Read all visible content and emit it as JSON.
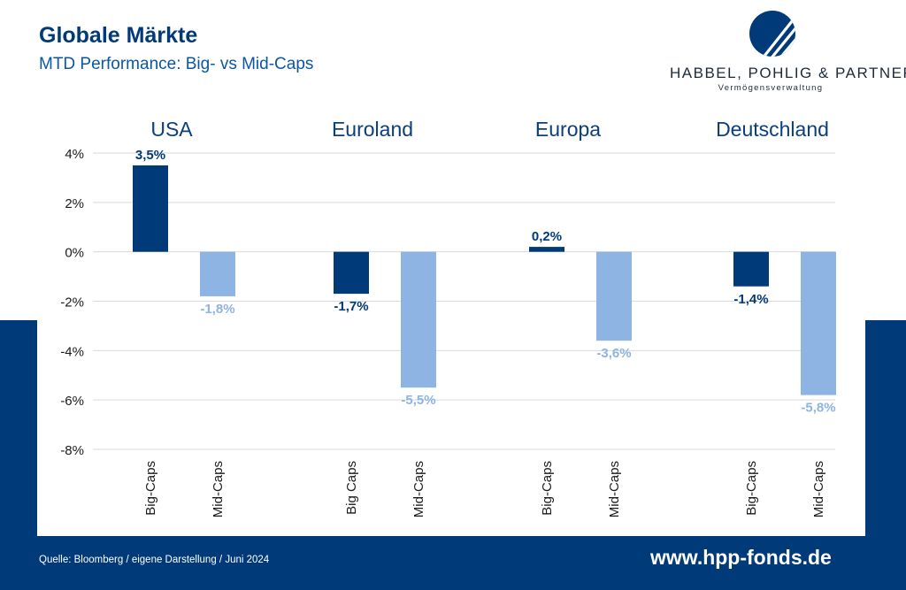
{
  "header": {
    "title": "Globale Märkte",
    "subtitle": "MTD Performance: Big- vs Mid-Caps"
  },
  "logo": {
    "name": "HABBEL, POHLIG & PARTNER",
    "tagline": "Vermögensverwaltung",
    "icon": "stripe-circle-icon"
  },
  "footer": {
    "source": "Quelle: Bloomberg / eigene Darstellung / Juni 2024",
    "website": "www.hpp-fonds.de"
  },
  "colors": {
    "big_caps": "#003a78",
    "mid_caps": "#8db4e2",
    "band": "#003a78",
    "grid": "#d9d9d9"
  },
  "chart_data": {
    "type": "bar",
    "title": "",
    "xlabel": "",
    "ylabel": "",
    "ylim": [
      -8,
      4
    ],
    "yticks": [
      4,
      2,
      0,
      -2,
      -4,
      -6,
      -8
    ],
    "ytick_labels": [
      "4%",
      "2%",
      "0%",
      "-2%",
      "-4%",
      "-6%",
      "-8%"
    ],
    "grid": true,
    "groups": [
      {
        "label": "USA",
        "bars": [
          {
            "category": "Big-Caps",
            "value": 3.5,
            "label": "3,5%",
            "series": "big"
          },
          {
            "category": "Mid-Caps",
            "value": -1.8,
            "label": "-1,8%",
            "series": "mid"
          }
        ]
      },
      {
        "label": "Euroland",
        "bars": [
          {
            "category": "Big Caps",
            "value": -1.7,
            "label": "-1,7%",
            "series": "big"
          },
          {
            "category": "Mid-Caps",
            "value": -5.5,
            "label": "-5,5%",
            "series": "mid"
          }
        ]
      },
      {
        "label": "Europa",
        "bars": [
          {
            "category": "Big-Caps",
            "value": 0.2,
            "label": "0,2%",
            "series": "big"
          },
          {
            "category": "Mid-Caps",
            "value": -3.6,
            "label": "-3,6%",
            "series": "mid"
          }
        ]
      },
      {
        "label": "Deutschland",
        "bars": [
          {
            "category": "Big-Caps",
            "value": -1.4,
            "label": "-1,4%",
            "series": "big"
          },
          {
            "category": "Mid-Caps",
            "value": -5.8,
            "label": "-5,8%",
            "series": "mid"
          }
        ]
      }
    ]
  }
}
